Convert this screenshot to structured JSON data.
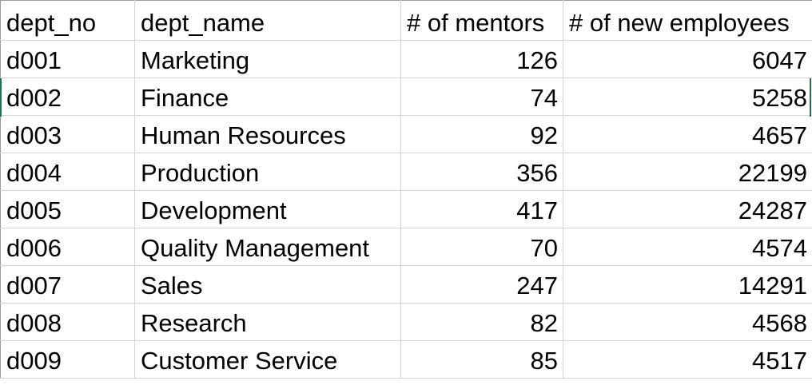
{
  "table": {
    "headers": [
      "dept_no",
      "dept_name",
      "# of mentors",
      "# of new employees"
    ],
    "rows": [
      [
        "d001",
        "Marketing",
        "126",
        "6047"
      ],
      [
        "d002",
        "Finance",
        "74",
        "5258"
      ],
      [
        "d003",
        "Human Resources",
        "92",
        "4657"
      ],
      [
        "d004",
        "Production",
        "356",
        "22199"
      ],
      [
        "d005",
        "Development",
        "417",
        "24287"
      ],
      [
        "d006",
        "Quality Management",
        "70",
        "4574"
      ],
      [
        "d007",
        "Sales",
        "247",
        "14291"
      ],
      [
        "d008",
        "Research",
        "82",
        "4568"
      ],
      [
        "d009",
        "Customer Service",
        "85",
        "4517"
      ]
    ]
  },
  "colors": {
    "gridline": "#d4d4d4",
    "selection_edge": "#217346"
  }
}
